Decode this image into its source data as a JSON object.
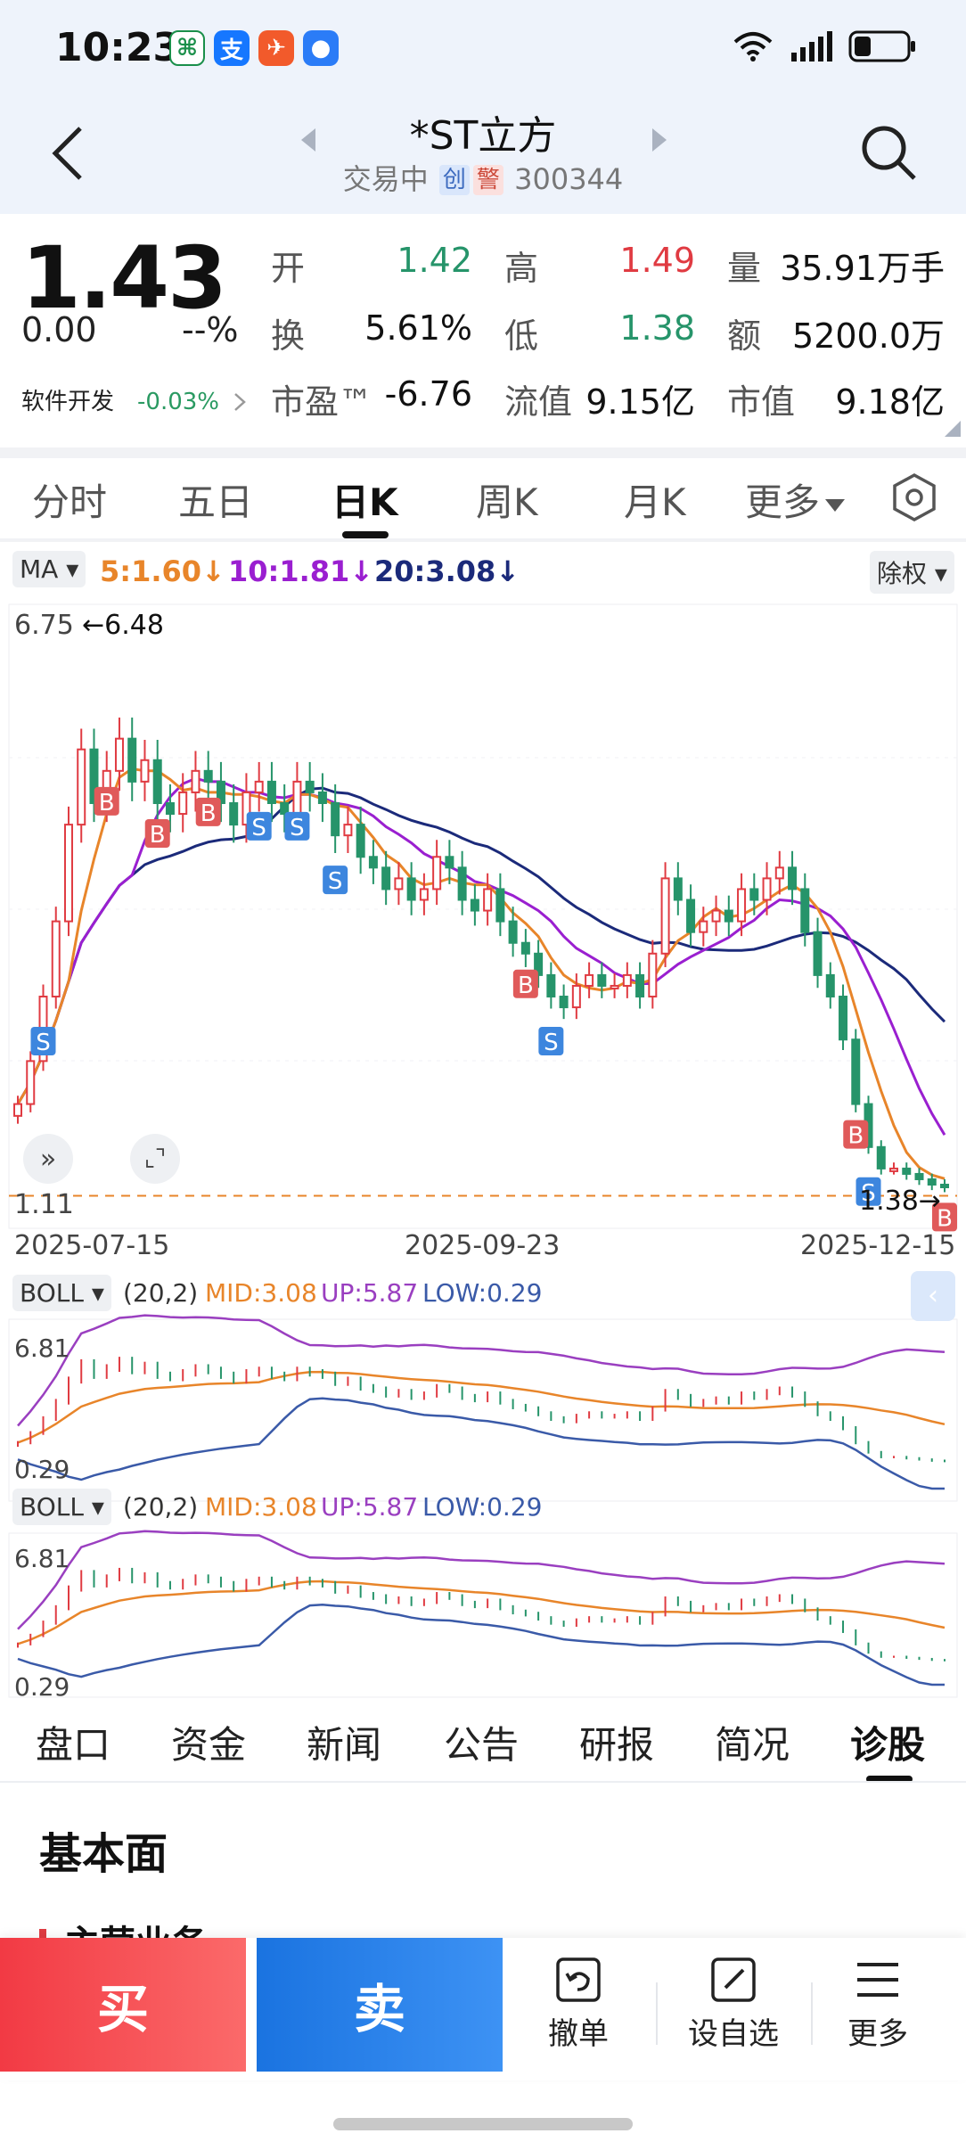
{
  "status": {
    "time": "10:23"
  },
  "header": {
    "title": "*ST立方",
    "state": "交易中",
    "tag_chuang": "创",
    "tag_jing": "警",
    "code": "300344"
  },
  "quote": {
    "price": "1.43",
    "change": "0.00",
    "change_pct": "--%",
    "sector": "软件开发",
    "sector_change": "-0.03%",
    "open_label": "开",
    "open": "1.42",
    "high_label": "高",
    "high": "1.49",
    "volume_label": "量",
    "volume": "35.91万手",
    "turnover_label": "换",
    "turnover": "5.61%",
    "low_label": "低",
    "low": "1.38",
    "amount_label": "额",
    "amount": "5200.0万",
    "pe_label": "市盈™",
    "pe": "-6.76",
    "float_cap_label": "流值",
    "float_cap": "9.15亿",
    "mkt_cap_label": "市值",
    "mkt_cap": "9.18亿"
  },
  "period_tabs": [
    "分时",
    "五日",
    "日K",
    "周K",
    "月K",
    "更多"
  ],
  "ma": {
    "selector": "MA",
    "ma5": "5:1.60",
    "ma10": "10:1.81",
    "ma20": "20:3.08",
    "adjust": "除权"
  },
  "kchart": {
    "top_price": "6.75",
    "max_marker": "6.48",
    "bottom_price": "1.11",
    "min_marker": "1.38",
    "dates": [
      "2025-07-15",
      "2025-09-23",
      "2025-12-15"
    ]
  },
  "boll1": {
    "selector": "BOLL",
    "params": "(20,2)",
    "mid": "MID:3.08",
    "up": "UP:5.87",
    "low": "LOW:0.29",
    "top": "6.81",
    "bottom": "0.29"
  },
  "boll2": {
    "selector": "BOLL",
    "params": "(20,2)",
    "mid": "MID:3.08",
    "up": "UP:5.87",
    "low": "LOW:0.29",
    "top": "6.81",
    "bottom": "0.29"
  },
  "bottom_tabs": [
    "盘口",
    "资金",
    "新闻",
    "公告",
    "研报",
    "简况",
    "诊股"
  ],
  "section": {
    "title": "基本面",
    "item": "主营业务"
  },
  "actions": {
    "buy": "买",
    "sell": "卖",
    "cancel": "撤单",
    "watch": "设自选",
    "more": "更多"
  },
  "colors": {
    "up": "#e03b42",
    "down": "#26946a",
    "ma5": "#e8852a",
    "ma10": "#9a1fd0",
    "ma20": "#1b2a7a"
  },
  "chart_data": {
    "type": "candlestick",
    "title": "",
    "xlabel": "",
    "ylabel": "",
    "x": [
      "2025-07-15",
      "2025-09-23",
      "2025-12-15"
    ],
    "ylim": [
      1.11,
      6.75
    ],
    "close_series": [
      2.2,
      2.6,
      3.2,
      3.9,
      4.8,
      5.5,
      5.0,
      5.3,
      5.6,
      5.2,
      5.4,
      5.0,
      4.9,
      5.1,
      5.3,
      5.2,
      5.0,
      4.8,
      5.1,
      5.2,
      5.0,
      4.9,
      5.2,
      5.1,
      5.0,
      4.7,
      4.8,
      4.5,
      4.4,
      4.2,
      4.3,
      4.1,
      4.2,
      4.5,
      4.4,
      4.1,
      4.0,
      4.2,
      3.9,
      3.7,
      3.6,
      3.4,
      3.2,
      3.1,
      3.3,
      3.4,
      3.3,
      3.3,
      3.4,
      3.2,
      3.6,
      4.3,
      4.1,
      3.8,
      3.9,
      4.0,
      3.9,
      4.2,
      4.1,
      4.3,
      4.4,
      4.2,
      3.8,
      3.4,
      3.2,
      2.8,
      2.2,
      1.8,
      1.6,
      1.6,
      1.55,
      1.5,
      1.45,
      1.43
    ],
    "ma5_last": 1.6,
    "ma10_last": 1.81,
    "ma20_last": 3.08,
    "boll": {
      "mid": 3.08,
      "up": 5.87,
      "low": 0.29,
      "ylim": [
        0.29,
        6.81
      ]
    }
  }
}
